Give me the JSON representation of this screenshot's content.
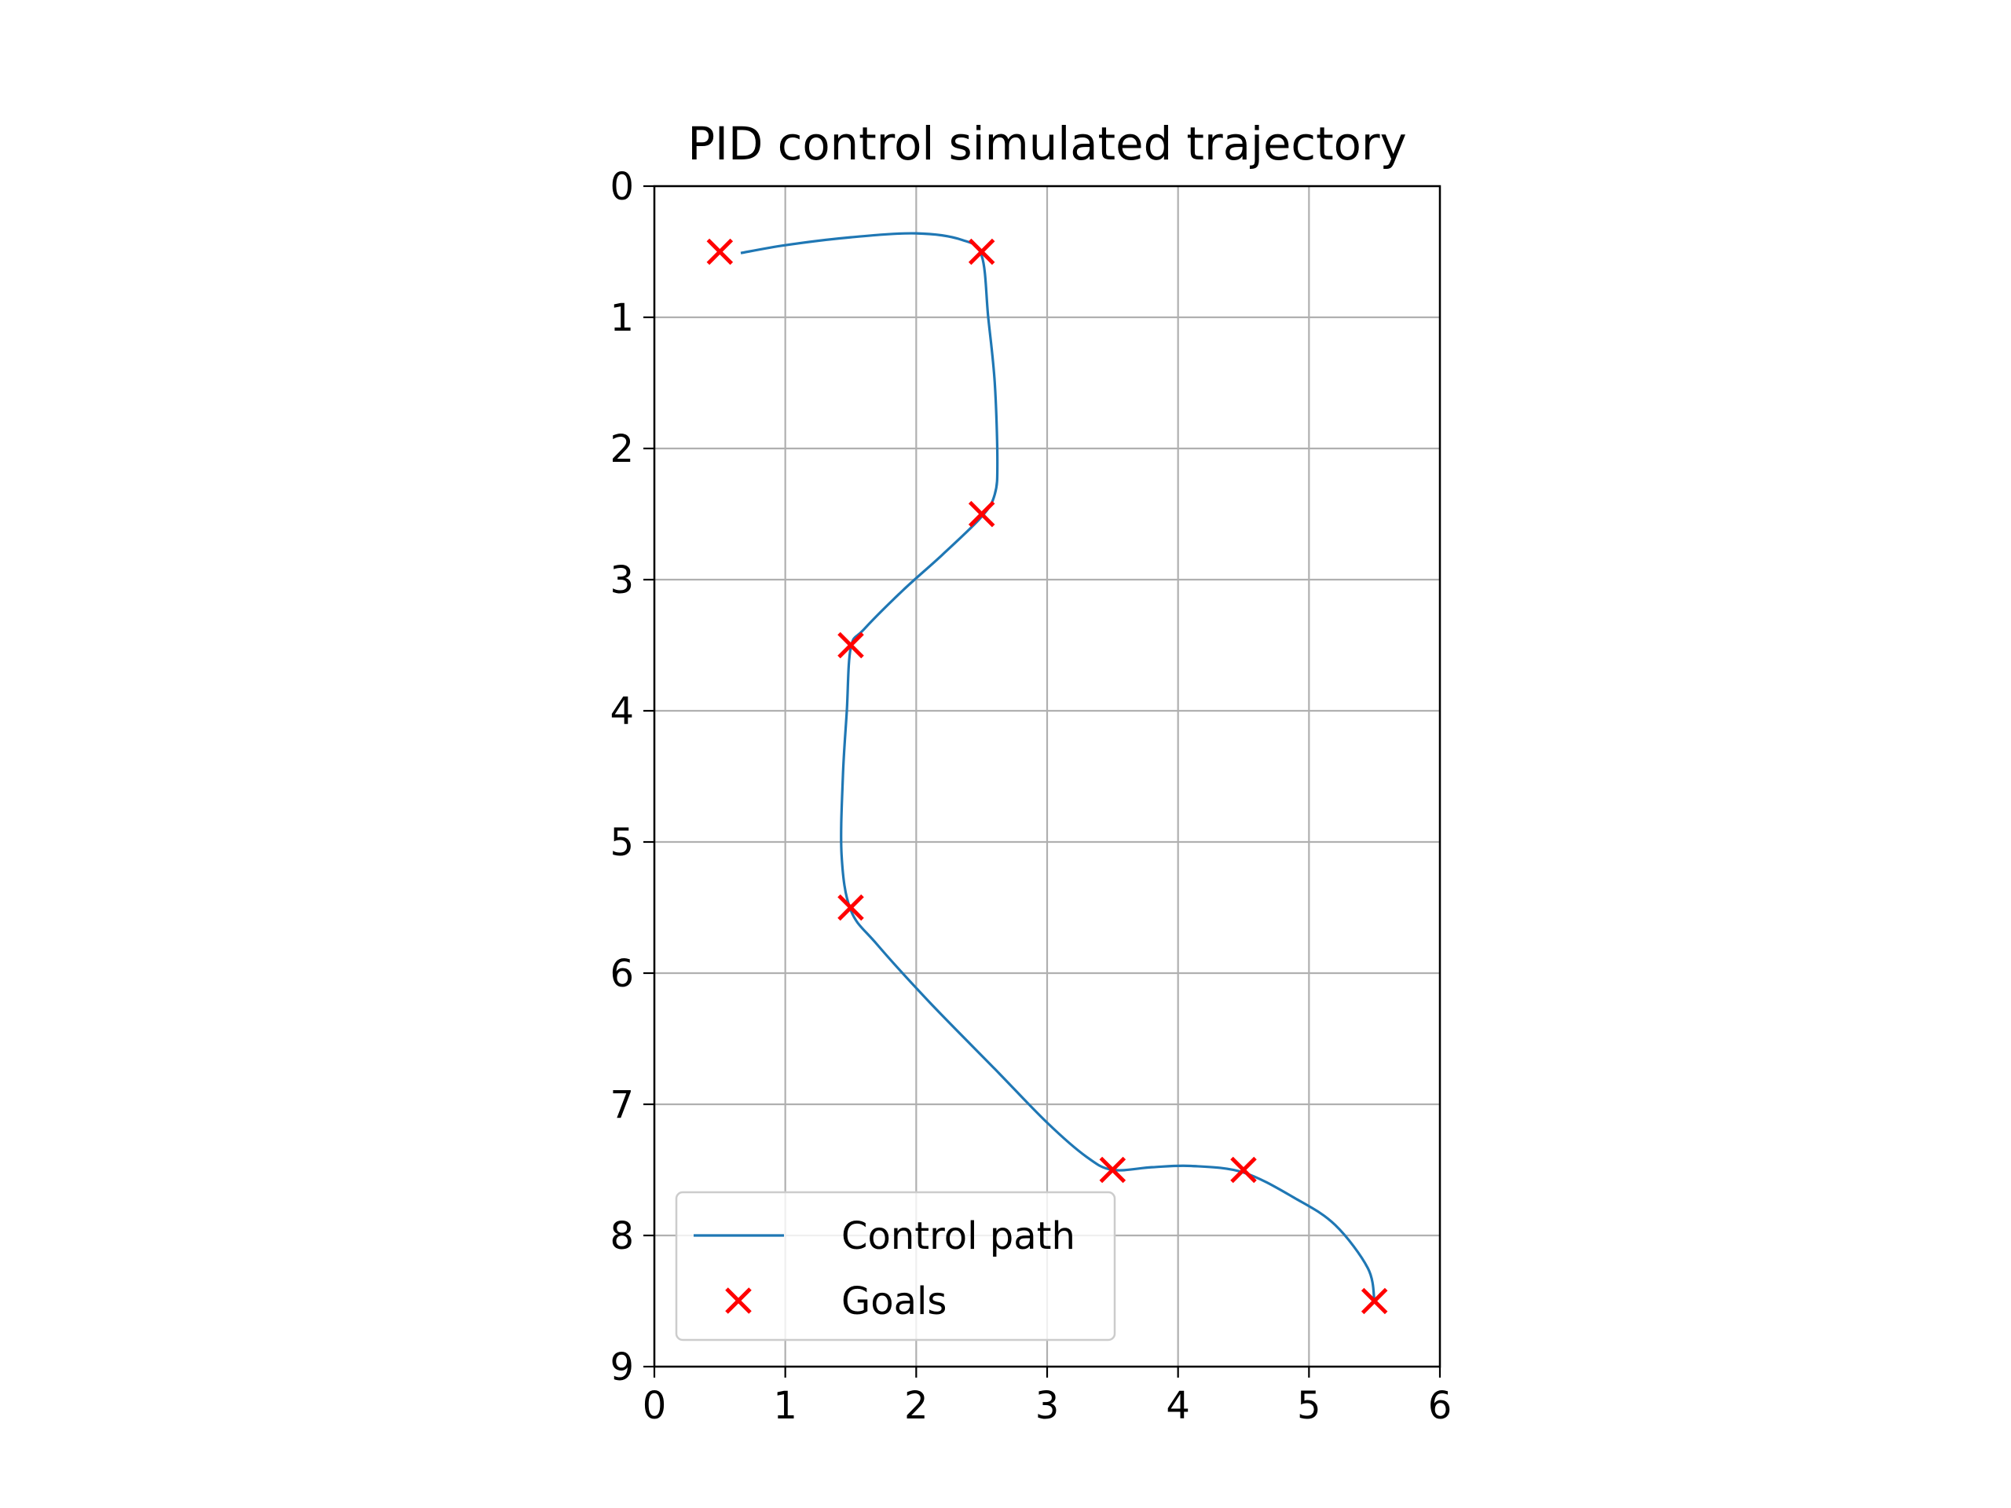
{
  "chart_data": {
    "type": "line",
    "title": "PID control simulated trajectory",
    "xlabel": "",
    "ylabel": "",
    "xlim": [
      0,
      6
    ],
    "ylim": [
      9,
      0
    ],
    "y_inverted": true,
    "xticks": [
      0,
      1,
      2,
      3,
      4,
      5,
      6
    ],
    "yticks": [
      0,
      1,
      2,
      3,
      4,
      5,
      6,
      7,
      8,
      9
    ],
    "grid": true,
    "legend_position": "lower-left",
    "series": [
      {
        "name": "Control path",
        "kind": "line",
        "color": "#1f77b4",
        "x": [
          0.66,
          1.0,
          1.5,
          2.0,
          2.35,
          2.5,
          2.55,
          2.6,
          2.62,
          2.6,
          2.5,
          2.2,
          1.9,
          1.6,
          1.5,
          1.47,
          1.44,
          1.43,
          1.5,
          1.7,
          2.1,
          2.6,
          3.0,
          3.3,
          3.5,
          3.8,
          4.1,
          4.5,
          4.9,
          5.2,
          5.45,
          5.5
        ],
        "y": [
          0.51,
          0.45,
          0.39,
          0.36,
          0.41,
          0.53,
          1.0,
          1.5,
          2.1,
          2.35,
          2.52,
          2.81,
          3.08,
          3.38,
          3.52,
          4.0,
          4.5,
          5.1,
          5.52,
          5.78,
          6.22,
          6.73,
          7.14,
          7.4,
          7.5,
          7.48,
          7.47,
          7.52,
          7.72,
          7.92,
          8.25,
          8.5
        ]
      },
      {
        "name": "Goals",
        "kind": "scatter",
        "marker": "x",
        "color": "#ff0000",
        "x": [
          0.5,
          2.5,
          2.5,
          1.5,
          1.5,
          3.5,
          4.5,
          5.5
        ],
        "y": [
          0.5,
          0.5,
          2.5,
          3.5,
          5.5,
          7.5,
          7.5,
          8.5
        ]
      }
    ]
  }
}
